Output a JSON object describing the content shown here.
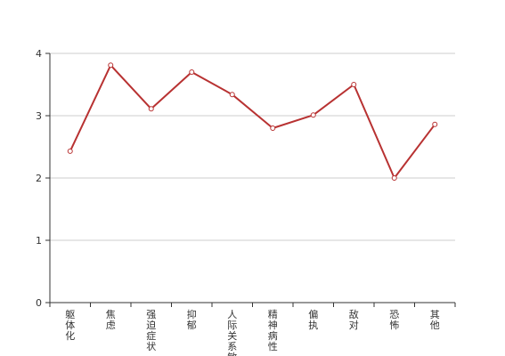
{
  "chart_data": {
    "type": "line",
    "categories": [
      "躯体化",
      "焦虑",
      "强迫症状",
      "抑郁",
      "人际关系敏感",
      "精神病性",
      "偏执",
      "敌对",
      "恐怖",
      "其他"
    ],
    "series": [
      {
        "values": [
          2.43,
          3.81,
          3.11,
          3.7,
          3.34,
          2.8,
          3.01,
          3.5,
          2.0,
          2.86
        ]
      }
    ],
    "ylim": [
      0,
      4
    ],
    "yticks": [
      0,
      1,
      2,
      3,
      4
    ],
    "grid": true,
    "title": "",
    "xlabel": "",
    "ylabel": "",
    "colors": {
      "line": "#b83232",
      "grid": "#cccccc",
      "axis": "#333333",
      "point_fill": "#ffffff"
    }
  }
}
